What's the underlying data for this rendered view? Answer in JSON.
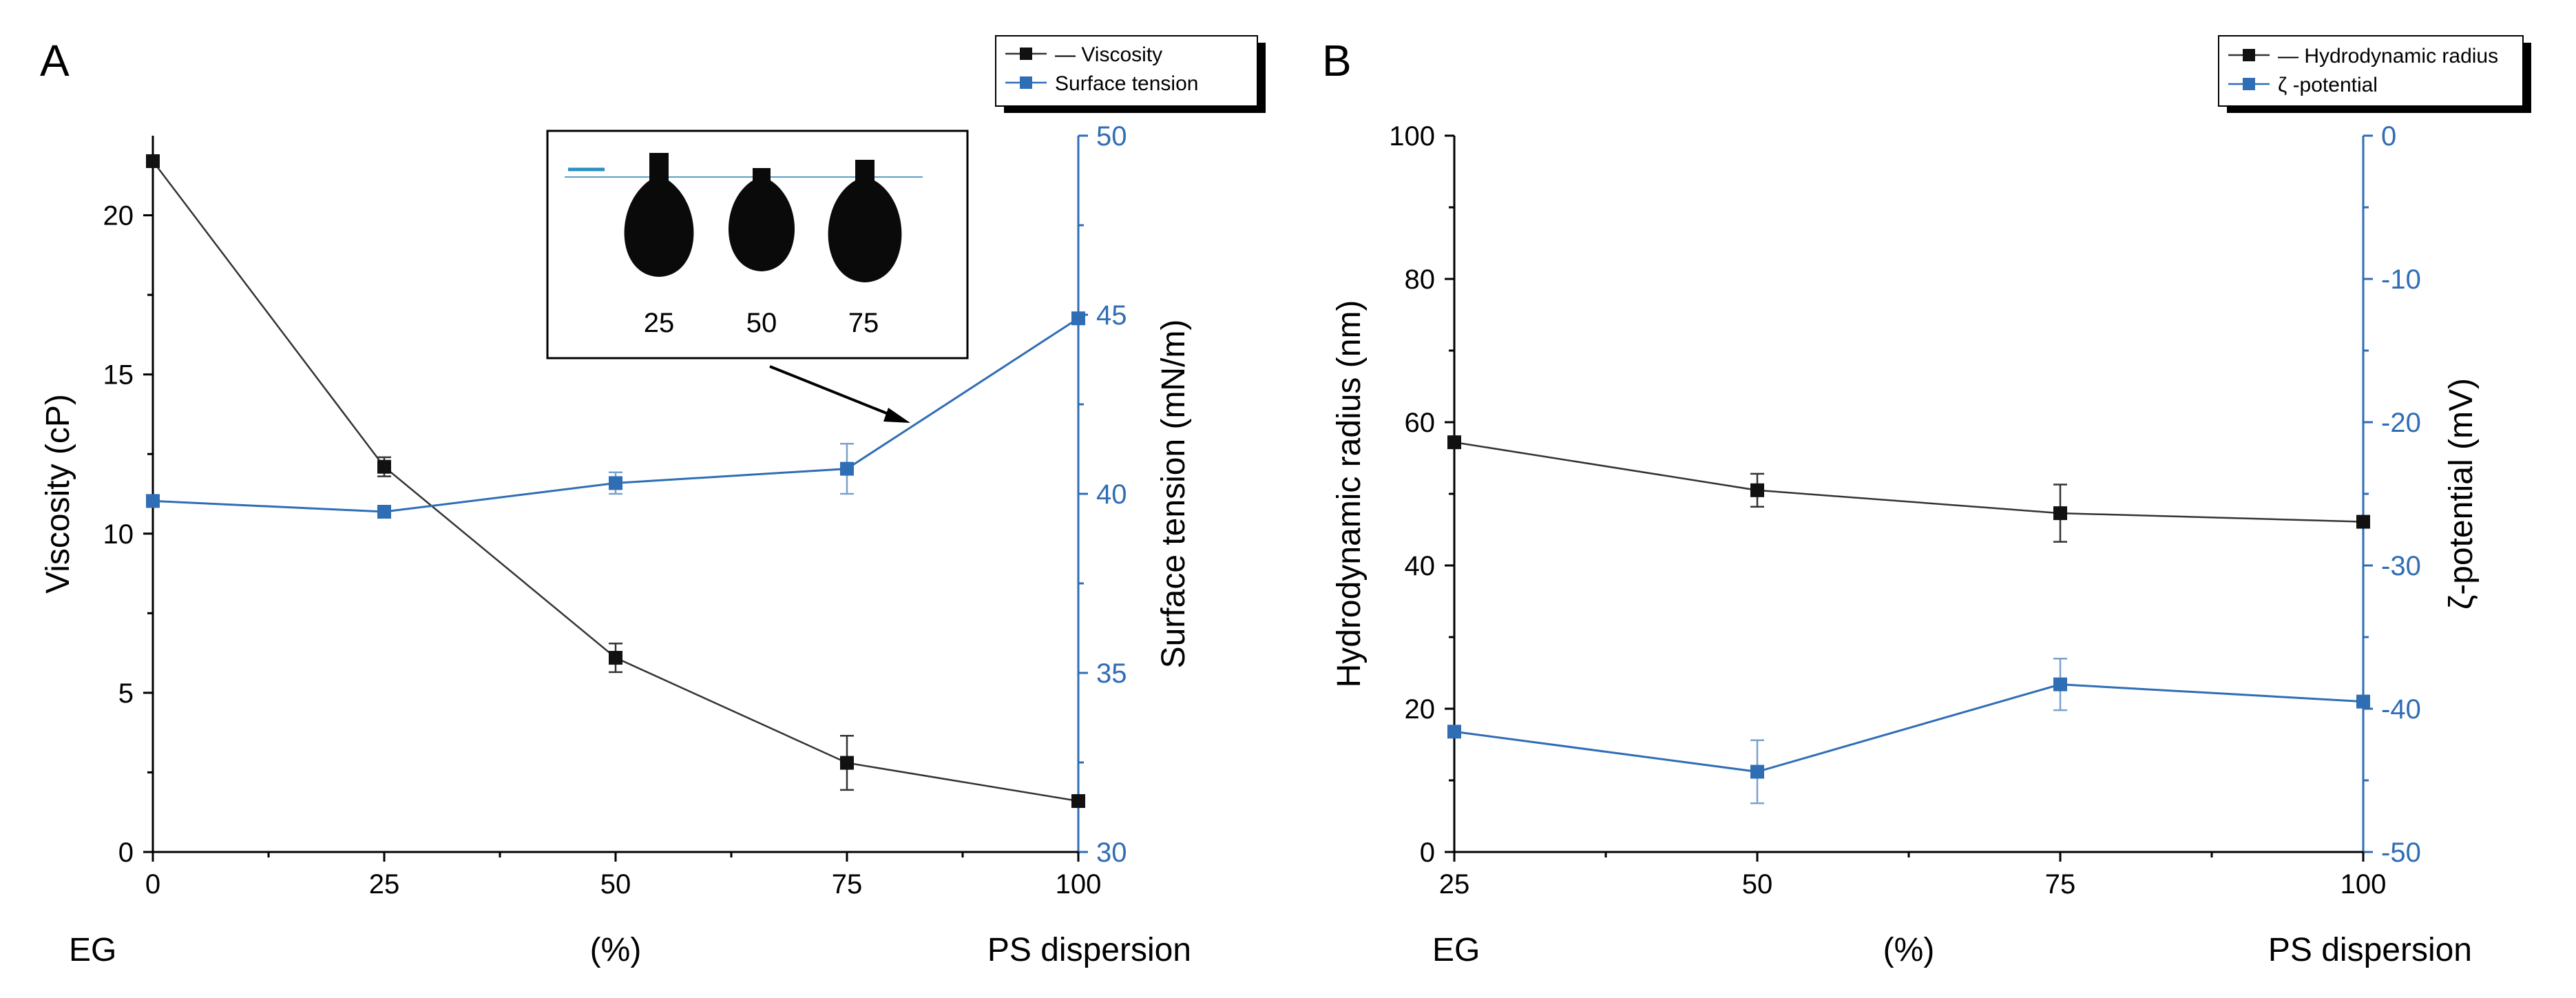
{
  "chart_data": [
    {
      "panel": "A",
      "type": "line",
      "x": [
        0,
        25,
        50,
        75,
        100
      ],
      "xlim": [
        0,
        100
      ],
      "x_ticks": [
        "0",
        "25",
        "50",
        "75",
        "100"
      ],
      "x_left_label": "EG",
      "x_mid_label": "(%)",
      "x_right_label": "PS dispersion",
      "left_axis": {
        "label": "Viscosity (cP)",
        "ylim": [
          0,
          22.5
        ],
        "ticks": [
          "0",
          "5",
          "10",
          "15",
          "20"
        ],
        "tick_values": [
          0,
          5,
          10,
          15,
          20
        ]
      },
      "right_axis": {
        "label": "Surface tension (mN/m)",
        "ylim": [
          30,
          50
        ],
        "ticks": [
          "30",
          "35",
          "40",
          "45",
          "50"
        ],
        "tick_values": [
          30,
          35,
          40,
          45,
          50
        ],
        "color": "#2f6db5"
      },
      "series": [
        {
          "name": "Viscosity",
          "axis": "left",
          "color": "#111111",
          "values": [
            21.7,
            12.1,
            6.1,
            2.8,
            1.6
          ],
          "errors": [
            0,
            0.3,
            0.45,
            0.85,
            0
          ]
        },
        {
          "name": "Surface tension",
          "axis": "right",
          "color": "#2f6db5",
          "values": [
            39.8,
            39.5,
            40.3,
            40.7,
            44.9
          ],
          "errors": [
            0,
            0,
            0.3,
            0.7,
            0
          ]
        }
      ],
      "inset": {
        "description_labels": [
          "25",
          "50",
          "75"
        ]
      }
    },
    {
      "panel": "B",
      "type": "line",
      "x": [
        25,
        50,
        75,
        100
      ],
      "xlim": [
        25,
        100
      ],
      "x_ticks": [
        "25",
        "50",
        "75",
        "100"
      ],
      "x_left_label": "EG",
      "x_mid_label": "(%)",
      "x_right_label": "PS dispersion",
      "left_axis": {
        "label": "Hydrodynamic radius (nm)",
        "ylim": [
          0,
          100
        ],
        "ticks": [
          "0",
          "20",
          "40",
          "60",
          "80",
          "100"
        ],
        "tick_values": [
          0,
          20,
          40,
          60,
          80,
          100
        ]
      },
      "right_axis": {
        "label": "ζ-potential (mV)",
        "ylim": [
          -50,
          0
        ],
        "ticks": [
          "-50",
          "-40",
          "-30",
          "-20",
          "-10",
          "0"
        ],
        "tick_values": [
          -50,
          -40,
          -30,
          -20,
          -10,
          0
        ],
        "color": "#2f6db5"
      },
      "series": [
        {
          "name": "Hydrodynamic radius",
          "axis": "left",
          "color": "#111111",
          "values": [
            57.2,
            50.5,
            47.3,
            46.1
          ],
          "errors": [
            0,
            2.3,
            4.0,
            0
          ]
        },
        {
          "name": "ζ -potential",
          "axis": "right",
          "color": "#2f6db5",
          "values": [
            -41.6,
            -44.4,
            -38.3,
            -39.5
          ],
          "errors": [
            0,
            2.2,
            1.8,
            0
          ]
        }
      ]
    }
  ]
}
